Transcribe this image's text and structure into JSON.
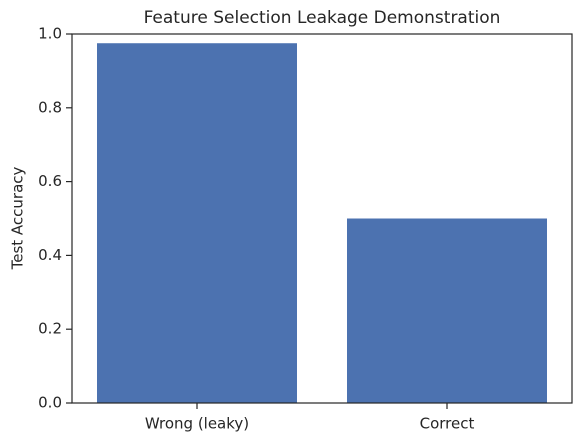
{
  "chart_data": {
    "type": "bar",
    "title": "Feature Selection Leakage Demonstration",
    "y_label": "Test Accuracy",
    "categories": [
      "Wrong (leaky)",
      "Correct"
    ],
    "values": [
      0.975,
      0.5
    ],
    "color": "#4c72b0",
    "ylim": [
      0,
      1
    ],
    "yticks": [
      {
        "value": 0,
        "label": "0.0"
      },
      0.2,
      0.4,
      0.6,
      0.8,
      {
        "value": 1,
        "label": "1.0"
      }
    ],
    "grid": false
  }
}
